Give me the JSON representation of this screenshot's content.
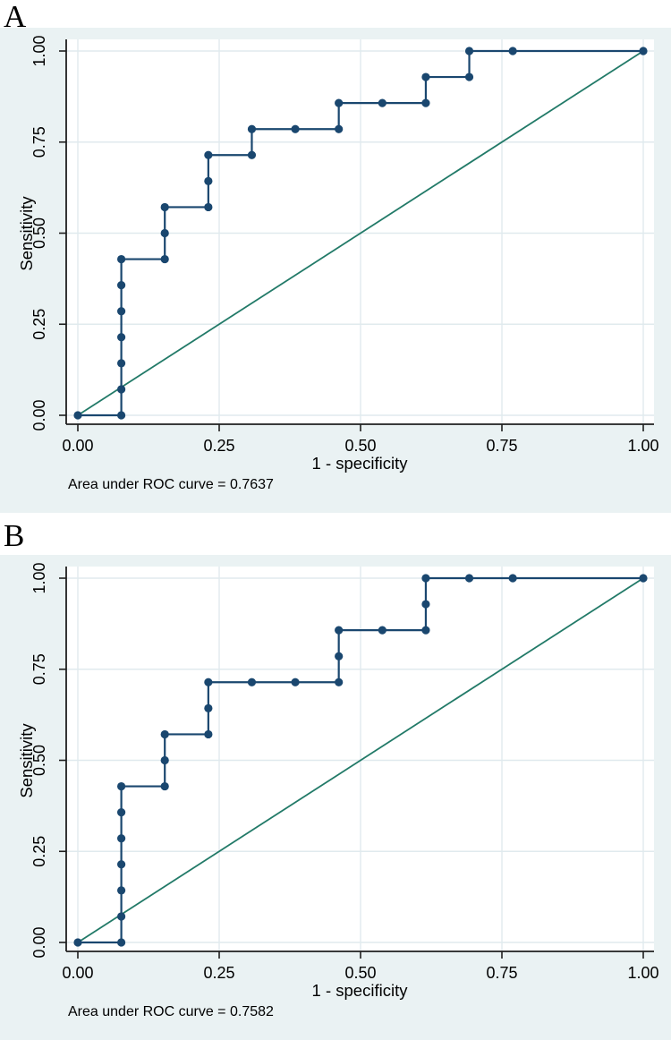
{
  "colors": {
    "panel_background": "#eaf2f3",
    "plot_background": "#ffffff",
    "gridline": "#e0eaee",
    "axis": "#1f1f1f",
    "text": "#000000",
    "roc_curve": "#1a476f",
    "reference_line": "#227a68"
  },
  "chart_data": [
    {
      "type": "line",
      "title": "A",
      "caption": "Area under ROC curve = 0.7637",
      "auc": 0.7637,
      "xlabel": "1 - specificity",
      "ylabel": "Sensitivity",
      "xlim": [
        0,
        1
      ],
      "ylim": [
        0,
        1
      ],
      "xticks": [
        0,
        0.25,
        0.5,
        0.75,
        1
      ],
      "yticks": [
        0,
        0.25,
        0.5,
        0.75,
        1
      ],
      "grid": true,
      "legend": "none",
      "series": [
        {
          "name": "reference-diagonal",
          "markers": false,
          "color": "#227a68",
          "points": [
            [
              0,
              0
            ],
            [
              1,
              1
            ]
          ]
        },
        {
          "name": "roc-curve",
          "markers": true,
          "color": "#1a476f",
          "points": [
            [
              0,
              0
            ],
            [
              0.0769,
              0
            ],
            [
              0.0769,
              0.0714
            ],
            [
              0.0769,
              0.1429
            ],
            [
              0.0769,
              0.2143
            ],
            [
              0.0769,
              0.2857
            ],
            [
              0.0769,
              0.3571
            ],
            [
              0.0769,
              0.4286
            ],
            [
              0.1538,
              0.4286
            ],
            [
              0.1538,
              0.5
            ],
            [
              0.1538,
              0.5714
            ],
            [
              0.2308,
              0.5714
            ],
            [
              0.2308,
              0.6429
            ],
            [
              0.2308,
              0.7143
            ],
            [
              0.3077,
              0.7143
            ],
            [
              0.3077,
              0.7857
            ],
            [
              0.3846,
              0.7857
            ],
            [
              0.4615,
              0.7857
            ],
            [
              0.4615,
              0.8571
            ],
            [
              0.5385,
              0.8571
            ],
            [
              0.6154,
              0.8571
            ],
            [
              0.6154,
              0.9286
            ],
            [
              0.6923,
              0.9286
            ],
            [
              0.6923,
              1
            ],
            [
              0.7692,
              1
            ],
            [
              1,
              1
            ]
          ]
        }
      ]
    },
    {
      "type": "line",
      "title": "B",
      "caption": "Area under ROC curve = 0.7582",
      "auc": 0.7582,
      "xlabel": "1 - specificity",
      "ylabel": "Sensitivity",
      "xlim": [
        0,
        1
      ],
      "ylim": [
        0,
        1
      ],
      "xticks": [
        0,
        0.25,
        0.5,
        0.75,
        1
      ],
      "yticks": [
        0,
        0.25,
        0.5,
        0.75,
        1
      ],
      "grid": true,
      "legend": "none",
      "series": [
        {
          "name": "reference-diagonal",
          "markers": false,
          "color": "#227a68",
          "points": [
            [
              0,
              0
            ],
            [
              1,
              1
            ]
          ]
        },
        {
          "name": "roc-curve",
          "markers": true,
          "color": "#1a476f",
          "points": [
            [
              0,
              0
            ],
            [
              0.0769,
              0
            ],
            [
              0.0769,
              0.0714
            ],
            [
              0.0769,
              0.1429
            ],
            [
              0.0769,
              0.2143
            ],
            [
              0.0769,
              0.2857
            ],
            [
              0.0769,
              0.3571
            ],
            [
              0.0769,
              0.4286
            ],
            [
              0.1538,
              0.4286
            ],
            [
              0.1538,
              0.5
            ],
            [
              0.1538,
              0.5714
            ],
            [
              0.2308,
              0.5714
            ],
            [
              0.2308,
              0.6429
            ],
            [
              0.2308,
              0.7143
            ],
            [
              0.3077,
              0.7143
            ],
            [
              0.3846,
              0.7143
            ],
            [
              0.4615,
              0.7143
            ],
            [
              0.4615,
              0.7857
            ],
            [
              0.4615,
              0.8571
            ],
            [
              0.5385,
              0.8571
            ],
            [
              0.6154,
              0.8571
            ],
            [
              0.6154,
              0.9286
            ],
            [
              0.6154,
              1
            ],
            [
              0.6923,
              1
            ],
            [
              0.7692,
              1
            ],
            [
              1,
              1
            ]
          ]
        }
      ]
    }
  ]
}
